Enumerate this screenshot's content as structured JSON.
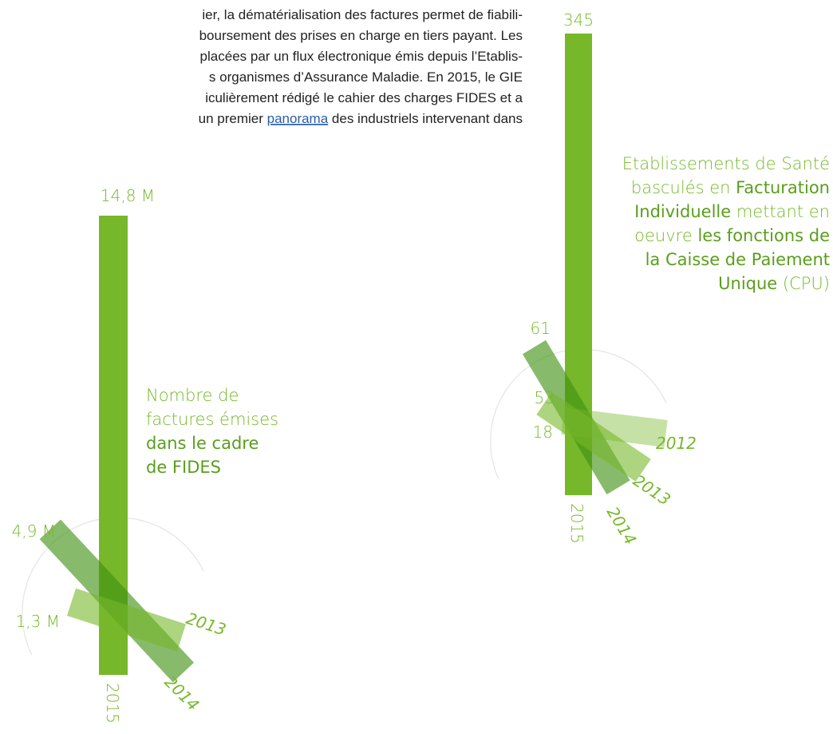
{
  "paragraph": {
    "lines": [
      "ier, la dématérialisation des factures permet de fiabili-",
      "boursement des prises en charge en tiers payant. Les",
      "placées par un flux électronique émis depuis l’Etablis-",
      "s organismes d’Assurance Maladie. En 2015, le GIE",
      "iculièrement rédigé le cahier des charges FIDES et a"
    ],
    "last_line": {
      "before": "un premier ",
      "link": "panorama",
      "after": " des industriels intervenant dans"
    }
  },
  "infographics": [
    {
      "main_value": "14,8 M",
      "main_year": "2015",
      "values": [
        "4,9 M",
        "1,3 M"
      ],
      "years": [
        "2014",
        "2013"
      ],
      "caption": [
        [
          {
            "text": "Nombre de",
            "strong": false
          }
        ],
        [
          {
            "text": "factures émises",
            "strong": false
          }
        ],
        [
          {
            "text": "dans le cadre",
            "strong": true
          }
        ],
        [
          {
            "text": "de FIDES",
            "strong": true
          }
        ]
      ]
    },
    {
      "main_value": "345",
      "main_year": "2015",
      "values": [
        "61",
        "53",
        "18"
      ],
      "years": [
        "2014",
        "2013",
        "2012"
      ],
      "caption": [
        [
          {
            "text": "Etablissements de Santé",
            "strong": false
          }
        ],
        [
          {
            "text": "basculés en ",
            "strong": false
          },
          {
            "text": "Facturation",
            "strong": true
          }
        ],
        [
          {
            "text": "Individuelle",
            "strong": true
          },
          {
            "text": " mettant en",
            "strong": false
          }
        ],
        [
          {
            "text": "oeuvre ",
            "strong": false
          },
          {
            "text": "les fonctions de",
            "strong": true
          }
        ],
        [
          {
            "text": "la Caisse de Paiement",
            "strong": true
          }
        ],
        [
          {
            "text": "Unique",
            "strong": true
          },
          {
            "text": " (CPU)",
            "strong": false
          }
        ]
      ]
    }
  ]
}
